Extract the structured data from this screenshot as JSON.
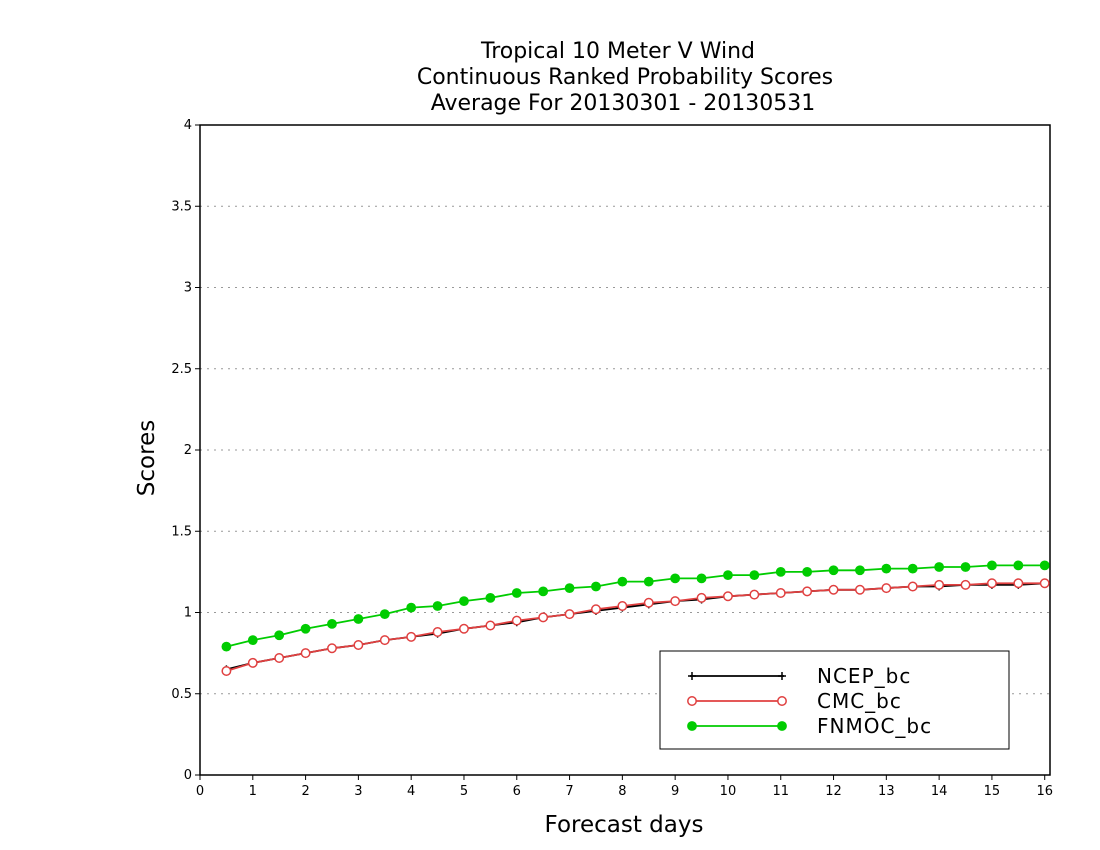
{
  "chart_data": {
    "type": "line",
    "title_lines": [
      "Tropical 10 Meter V Wind",
      "Continuous Ranked Probability Scores",
      "Average For 20130301 - 20130531"
    ],
    "xlabel": "Forecast days",
    "ylabel": "Scores",
    "xlim": [
      0,
      16.1
    ],
    "ylim": [
      0,
      4
    ],
    "xticks": [
      0,
      1,
      2,
      3,
      4,
      5,
      6,
      7,
      8,
      9,
      10,
      11,
      12,
      13,
      14,
      15,
      16
    ],
    "yticks": [
      0,
      0.5,
      1,
      1.5,
      2,
      2.5,
      3,
      3.5,
      4
    ],
    "ytick_labels": [
      "0",
      "0.5",
      "1",
      "1.5",
      "2",
      "2.5",
      "3",
      "3.5",
      "4"
    ],
    "grid": "horizontal dotted",
    "legend_position": "bottom-right",
    "x": [
      0.5,
      1,
      1.5,
      2,
      2.5,
      3,
      3.5,
      4,
      4.5,
      5,
      5.5,
      6,
      6.5,
      7,
      7.5,
      8,
      8.5,
      9,
      9.5,
      10,
      10.5,
      11,
      11.5,
      12,
      12.5,
      13,
      13.5,
      14,
      14.5,
      15,
      15.5,
      16
    ],
    "series": [
      {
        "name": "NCEP_bc",
        "color": "#000000",
        "marker": "plus",
        "values": [
          0.65,
          0.69,
          0.72,
          0.75,
          0.78,
          0.8,
          0.83,
          0.85,
          0.87,
          0.9,
          0.92,
          0.94,
          0.97,
          0.99,
          1.01,
          1.03,
          1.05,
          1.07,
          1.08,
          1.1,
          1.11,
          1.12,
          1.13,
          1.14,
          1.14,
          1.15,
          1.16,
          1.16,
          1.17,
          1.17,
          1.17,
          1.18
        ]
      },
      {
        "name": "CMC_bc",
        "color": "#e04040",
        "marker": "open-circle",
        "values": [
          0.64,
          0.69,
          0.72,
          0.75,
          0.78,
          0.8,
          0.83,
          0.85,
          0.88,
          0.9,
          0.92,
          0.95,
          0.97,
          0.99,
          1.02,
          1.04,
          1.06,
          1.07,
          1.09,
          1.1,
          1.11,
          1.12,
          1.13,
          1.14,
          1.14,
          1.15,
          1.16,
          1.17,
          1.17,
          1.18,
          1.18,
          1.18
        ]
      },
      {
        "name": "FNMOC_bc",
        "color": "#00cc00",
        "marker": "filled-circle",
        "values": [
          0.79,
          0.83,
          0.86,
          0.9,
          0.93,
          0.96,
          0.99,
          1.03,
          1.04,
          1.07,
          1.09,
          1.12,
          1.13,
          1.15,
          1.16,
          1.19,
          1.19,
          1.21,
          1.21,
          1.23,
          1.23,
          1.25,
          1.25,
          1.26,
          1.26,
          1.27,
          1.27,
          1.28,
          1.28,
          1.29,
          1.29,
          1.29
        ]
      }
    ]
  }
}
